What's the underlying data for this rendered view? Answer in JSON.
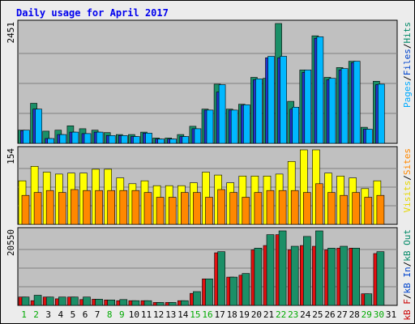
{
  "chart_data": [
    {
      "type": "bar",
      "title": "Daily usage for April 2017",
      "panel": "top",
      "days": [
        "1",
        "2",
        "3",
        "4",
        "5",
        "6",
        "7",
        "8",
        "9",
        "10",
        "11",
        "12",
        "13",
        "14",
        "15",
        "16",
        "17",
        "18",
        "19",
        "20",
        "21",
        "22",
        "23",
        "24",
        "25",
        "26",
        "27",
        "28",
        "29",
        "30",
        "31"
      ],
      "weekend_days": [
        "1",
        "2",
        "8",
        "9",
        "15",
        "16",
        "22",
        "23",
        "29",
        "30"
      ],
      "ymax_label": "2451",
      "ylim": [
        0,
        2451
      ],
      "legend": [
        {
          "name": "Pages",
          "color": "#00aaff"
        },
        {
          "name": "Files",
          "color": "#0044cc"
        },
        {
          "name": "Hits",
          "color": "#008866"
        }
      ],
      "series": [
        {
          "name": "Hits",
          "color": "#1b8f67",
          "values": [
            270,
            820,
            250,
            270,
            360,
            300,
            270,
            220,
            180,
            180,
            230,
            110,
            110,
            180,
            350,
            700,
            1210,
            700,
            800,
            1350,
            1330,
            2451,
            860,
            1500,
            2200,
            1350,
            1550,
            1680,
            330,
            1270,
            0
          ]
        },
        {
          "name": "Files",
          "color": "#2233cc",
          "values": [
            260,
            700,
            100,
            180,
            230,
            200,
            230,
            160,
            160,
            140,
            210,
            90,
            90,
            140,
            300,
            680,
            1050,
            680,
            780,
            1300,
            1750,
            1750,
            700,
            1450,
            2150,
            1300,
            1500,
            1650,
            290,
            1200,
            0
          ]
        },
        {
          "name": "Pages",
          "color": "#00b8ff",
          "values": [
            270,
            700,
            100,
            180,
            230,
            200,
            230,
            160,
            160,
            140,
            210,
            90,
            90,
            140,
            300,
            680,
            1200,
            680,
            790,
            1320,
            1780,
            1780,
            740,
            1500,
            2180,
            1330,
            1530,
            1680,
            290,
            1210,
            0
          ]
        }
      ]
    },
    {
      "type": "bar",
      "panel": "middle",
      "ymax_label": "154",
      "ylim": [
        0,
        154
      ],
      "legend": [
        {
          "name": "Visits",
          "color": "#e6d800"
        },
        {
          "name": "Sites",
          "color": "#ff8800"
        }
      ],
      "series": [
        {
          "name": "Visits",
          "color": "#ffff00",
          "values": [
            90,
            120,
            108,
            104,
            106,
            106,
            114,
            114,
            96,
            84,
            90,
            80,
            80,
            80,
            86,
            108,
            102,
            86,
            100,
            100,
            100,
            104,
            130,
            154,
            154,
            106,
            100,
            96,
            74,
            90,
            0
          ]
        },
        {
          "name": "Sites",
          "color": "#ff8800",
          "values": [
            60,
            66,
            70,
            66,
            72,
            70,
            70,
            70,
            70,
            70,
            66,
            56,
            56,
            66,
            66,
            56,
            72,
            66,
            56,
            66,
            70,
            70,
            70,
            66,
            84,
            66,
            60,
            66,
            56,
            60,
            0
          ]
        }
      ]
    },
    {
      "type": "bar",
      "panel": "bottom",
      "ymax_label": "20550",
      "ylim": [
        0,
        20550
      ],
      "legend": [
        {
          "name": "kB F",
          "color": "#cc0000"
        },
        {
          "name": "kB In",
          "color": "#0044cc"
        },
        {
          "name": "kB Out",
          "color": "#008866"
        }
      ],
      "series": [
        {
          "name": "kB F",
          "color": "#e01010",
          "values": [
            2300,
            1300,
            2300,
            1800,
            2300,
            1600,
            1700,
            1500,
            1300,
            1300,
            1300,
            800,
            800,
            1300,
            3300,
            7300,
            14500,
            7800,
            8300,
            15300,
            16500,
            19500,
            15300,
            16500,
            16300,
            15300,
            15800,
            15800,
            3200,
            14300,
            0
          ]
        },
        {
          "name": "kB Out",
          "color": "#1b8f67",
          "values": [
            2300,
            2800,
            2300,
            2300,
            2300,
            2300,
            1700,
            1500,
            1600,
            1300,
            1300,
            800,
            800,
            1300,
            3800,
            7300,
            14800,
            7800,
            8800,
            15800,
            19500,
            20550,
            16300,
            19000,
            20550,
            15800,
            16300,
            15800,
            3200,
            14800,
            0
          ]
        }
      ]
    }
  ]
}
